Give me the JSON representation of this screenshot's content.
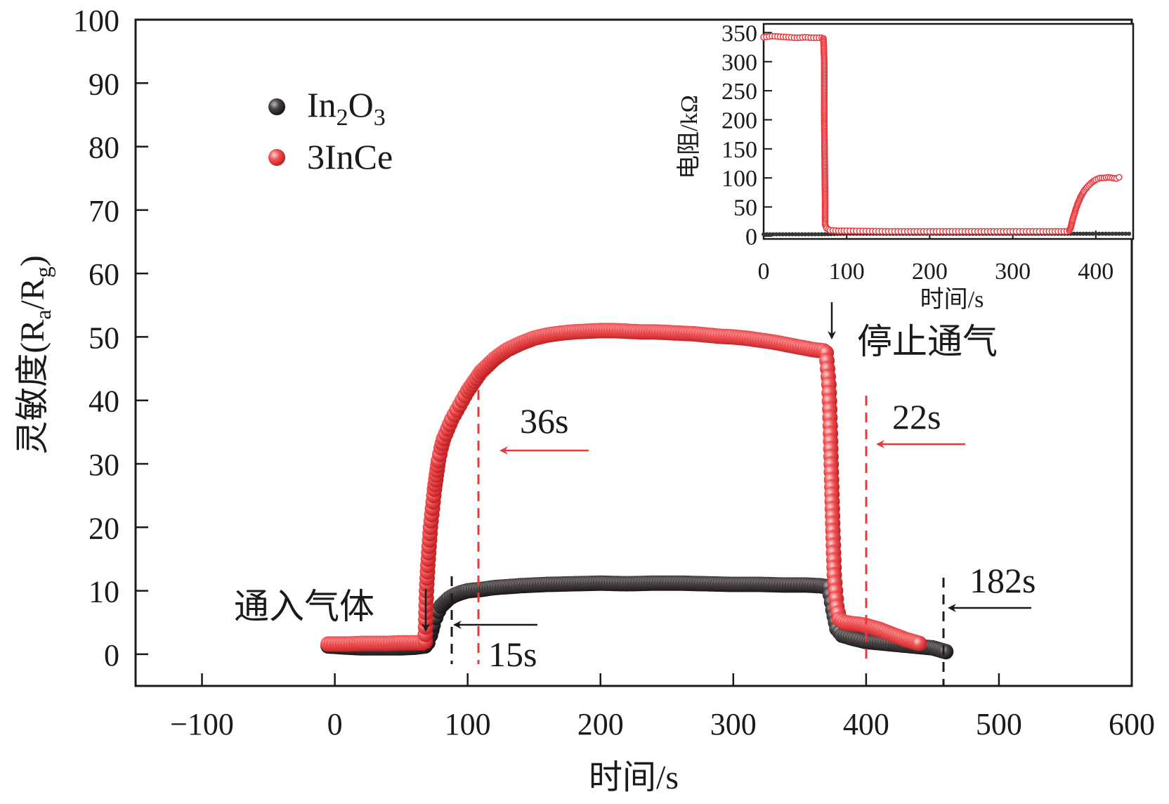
{
  "chart_data": [
    {
      "type": "scatter",
      "xlabel": "时间/s",
      "ylabel": "灵敏度(R",
      "ylabel_sub_a": "a",
      "ylabel_slash": "/R",
      "ylabel_sub_g": "g",
      "ylabel_close": ")",
      "xlim": [
        -150,
        600
      ],
      "ylim": [
        -5,
        100
      ],
      "xticks": [
        -100,
        0,
        100,
        200,
        300,
        400,
        500,
        600
      ],
      "xtick_labels": [
        "−100",
        "0",
        "100",
        "200",
        "300",
        "400",
        "500",
        "600"
      ],
      "yticks": [
        0,
        10,
        20,
        30,
        40,
        50,
        60,
        70,
        80,
        90,
        100
      ],
      "ytick_labels": [
        "0",
        "10",
        "20",
        "30",
        "40",
        "50",
        "60",
        "70",
        "80",
        "90",
        "100"
      ],
      "legend": [
        {
          "name": "In2O3",
          "label_main": "In",
          "sub1": "2",
          "mid": "O",
          "sub2": "3",
          "color": "#3a3535"
        },
        {
          "name": "3InCe",
          "label_main": "3InCe",
          "color": "#e8393c"
        }
      ],
      "series": [
        {
          "name": "In2O3",
          "color": "#3a3535",
          "points": [
            [
              -5,
              1.3
            ],
            [
              10,
              1.1
            ],
            [
              20,
              1.0
            ],
            [
              30,
              1.0
            ],
            [
              40,
              1.0
            ],
            [
              50,
              1.0
            ],
            [
              60,
              1.1
            ],
            [
              68,
              1.3
            ],
            [
              70,
              1.8
            ],
            [
              72,
              3.0
            ],
            [
              74,
              4.6
            ],
            [
              76,
              5.8
            ],
            [
              78,
              6.8
            ],
            [
              80,
              7.6
            ],
            [
              83,
              8.2
            ],
            [
              86,
              8.8
            ],
            [
              90,
              9.3
            ],
            [
              95,
              9.7
            ],
            [
              100,
              10.0
            ],
            [
              110,
              10.2
            ],
            [
              120,
              10.5
            ],
            [
              140,
              10.8
            ],
            [
              160,
              11.0
            ],
            [
              180,
              11.1
            ],
            [
              200,
              11.2
            ],
            [
              220,
              11.1
            ],
            [
              240,
              11.2
            ],
            [
              260,
              11.2
            ],
            [
              280,
              11.1
            ],
            [
              300,
              11.0
            ],
            [
              320,
              11.0
            ],
            [
              340,
              10.9
            ],
            [
              355,
              10.9
            ],
            [
              365,
              10.8
            ],
            [
              372,
              10.6
            ],
            [
              375,
              7.0
            ],
            [
              378,
              4.0
            ],
            [
              382,
              3.0
            ],
            [
              390,
              2.5
            ],
            [
              400,
              2.0
            ],
            [
              410,
              1.8
            ],
            [
              420,
              1.6
            ],
            [
              430,
              1.4
            ],
            [
              440,
              1.2
            ],
            [
              450,
              1.0
            ],
            [
              455,
              0.7
            ],
            [
              460,
              0.4
            ]
          ]
        },
        {
          "name": "3InCe",
          "color": "#e8393c",
          "points": [
            [
              -5,
              1.6
            ],
            [
              10,
              1.6
            ],
            [
              20,
              1.7
            ],
            [
              30,
              1.7
            ],
            [
              40,
              1.7
            ],
            [
              50,
              1.8
            ],
            [
              60,
              1.8
            ],
            [
              66,
              1.8
            ],
            [
              68,
              2.0
            ],
            [
              69,
              10.0
            ],
            [
              70,
              14.0
            ],
            [
              71,
              17.0
            ],
            [
              72,
              20.0
            ],
            [
              73,
              22.0
            ],
            [
              74,
              24.0
            ],
            [
              75,
              26.0
            ],
            [
              76,
              27.5
            ],
            [
              77,
              29.0
            ],
            [
              78,
              30.5
            ],
            [
              80,
              32.5
            ],
            [
              82,
              34.0
            ],
            [
              85,
              35.5
            ],
            [
              88,
              37.0
            ],
            [
              92,
              38.5
            ],
            [
              96,
              40.0
            ],
            [
              100,
              41.5
            ],
            [
              105,
              43.0
            ],
            [
              110,
              44.5
            ],
            [
              115,
              45.5
            ],
            [
              120,
              46.5
            ],
            [
              125,
              47.3
            ],
            [
              130,
              48.0
            ],
            [
              140,
              49.0
            ],
            [
              150,
              49.8
            ],
            [
              160,
              50.3
            ],
            [
              170,
              50.6
            ],
            [
              180,
              50.8
            ],
            [
              190,
              50.9
            ],
            [
              200,
              51.0
            ],
            [
              210,
              51.0
            ],
            [
              220,
              50.9
            ],
            [
              230,
              50.8
            ],
            [
              240,
              50.8
            ],
            [
              250,
              50.7
            ],
            [
              260,
              50.6
            ],
            [
              270,
              50.5
            ],
            [
              280,
              50.3
            ],
            [
              290,
              50.1
            ],
            [
              300,
              50.0
            ],
            [
              310,
              49.8
            ],
            [
              320,
              49.5
            ],
            [
              330,
              49.2
            ],
            [
              340,
              48.8
            ],
            [
              350,
              48.4
            ],
            [
              360,
              48.0
            ],
            [
              368,
              47.8
            ],
            [
              370,
              47.5
            ],
            [
              372,
              42.5
            ],
            [
              373,
              36.0
            ],
            [
              374,
              27.5
            ],
            [
              375,
              19.5
            ],
            [
              376,
              12.5
            ],
            [
              378,
              7.5
            ],
            [
              380,
              5.5
            ],
            [
              384,
              5.0
            ],
            [
              390,
              4.8
            ],
            [
              395,
              4.7
            ],
            [
              400,
              4.5
            ],
            [
              405,
              4.2
            ],
            [
              410,
              3.9
            ],
            [
              415,
              3.5
            ],
            [
              420,
              3.1
            ],
            [
              425,
              2.7
            ],
            [
              430,
              2.3
            ],
            [
              435,
              2.0
            ],
            [
              440,
              1.7
            ]
          ]
        }
      ],
      "annotations": {
        "gas_in": "通入气体",
        "gas_stop": "停止通气",
        "t15": "15s",
        "t36": "36s",
        "t22": "22s",
        "t182": "182s"
      }
    },
    {
      "type": "scatter",
      "xlabel": "时间/s",
      "ylabel": "电阻/kΩ",
      "xlim": [
        0,
        445
      ],
      "ylim": [
        -5,
        365
      ],
      "xticks": [
        0,
        100,
        200,
        300,
        400
      ],
      "xtick_labels": [
        "0",
        "100",
        "200",
        "300",
        "400"
      ],
      "yticks": [
        0,
        50,
        100,
        150,
        200,
        250,
        300,
        350
      ],
      "ytick_labels": [
        "0",
        "50",
        "100",
        "150",
        "200",
        "250",
        "300",
        "350"
      ],
      "series": [
        {
          "name": "In2O3",
          "color": "#3a3535",
          "points": [
            [
              0,
              3
            ],
            [
              50,
              3
            ],
            [
              70,
              3
            ],
            [
              100,
              4
            ],
            [
              200,
              4
            ],
            [
              300,
              4
            ],
            [
              370,
              4
            ],
            [
              400,
              4
            ],
            [
              440,
              4
            ]
          ]
        },
        {
          "name": "3InCe",
          "color": "#e8393c",
          "points": [
            [
              0,
              342
            ],
            [
              10,
              344
            ],
            [
              20,
              343
            ],
            [
              30,
              342
            ],
            [
              40,
              341
            ],
            [
              50,
              342
            ],
            [
              60,
              341
            ],
            [
              70,
              341
            ],
            [
              72,
              340
            ],
            [
              73,
              300
            ],
            [
              73,
              200
            ],
            [
              74,
              60
            ],
            [
              74,
              20
            ],
            [
              76,
              13
            ],
            [
              80,
              10
            ],
            [
              90,
              9
            ],
            [
              100,
              9
            ],
            [
              150,
              8
            ],
            [
              200,
              8
            ],
            [
              250,
              8
            ],
            [
              300,
              8
            ],
            [
              340,
              8
            ],
            [
              365,
              8
            ],
            [
              368,
              9
            ],
            [
              370,
              15
            ],
            [
              372,
              28
            ],
            [
              375,
              42
            ],
            [
              378,
              55
            ],
            [
              382,
              68
            ],
            [
              386,
              78
            ],
            [
              390,
              85
            ],
            [
              395,
              92
            ],
            [
              400,
              97
            ],
            [
              405,
              100
            ],
            [
              410,
              100
            ],
            [
              415,
              101
            ],
            [
              420,
              100
            ],
            [
              425,
              99
            ],
            [
              428,
              101
            ]
          ]
        }
      ]
    }
  ]
}
